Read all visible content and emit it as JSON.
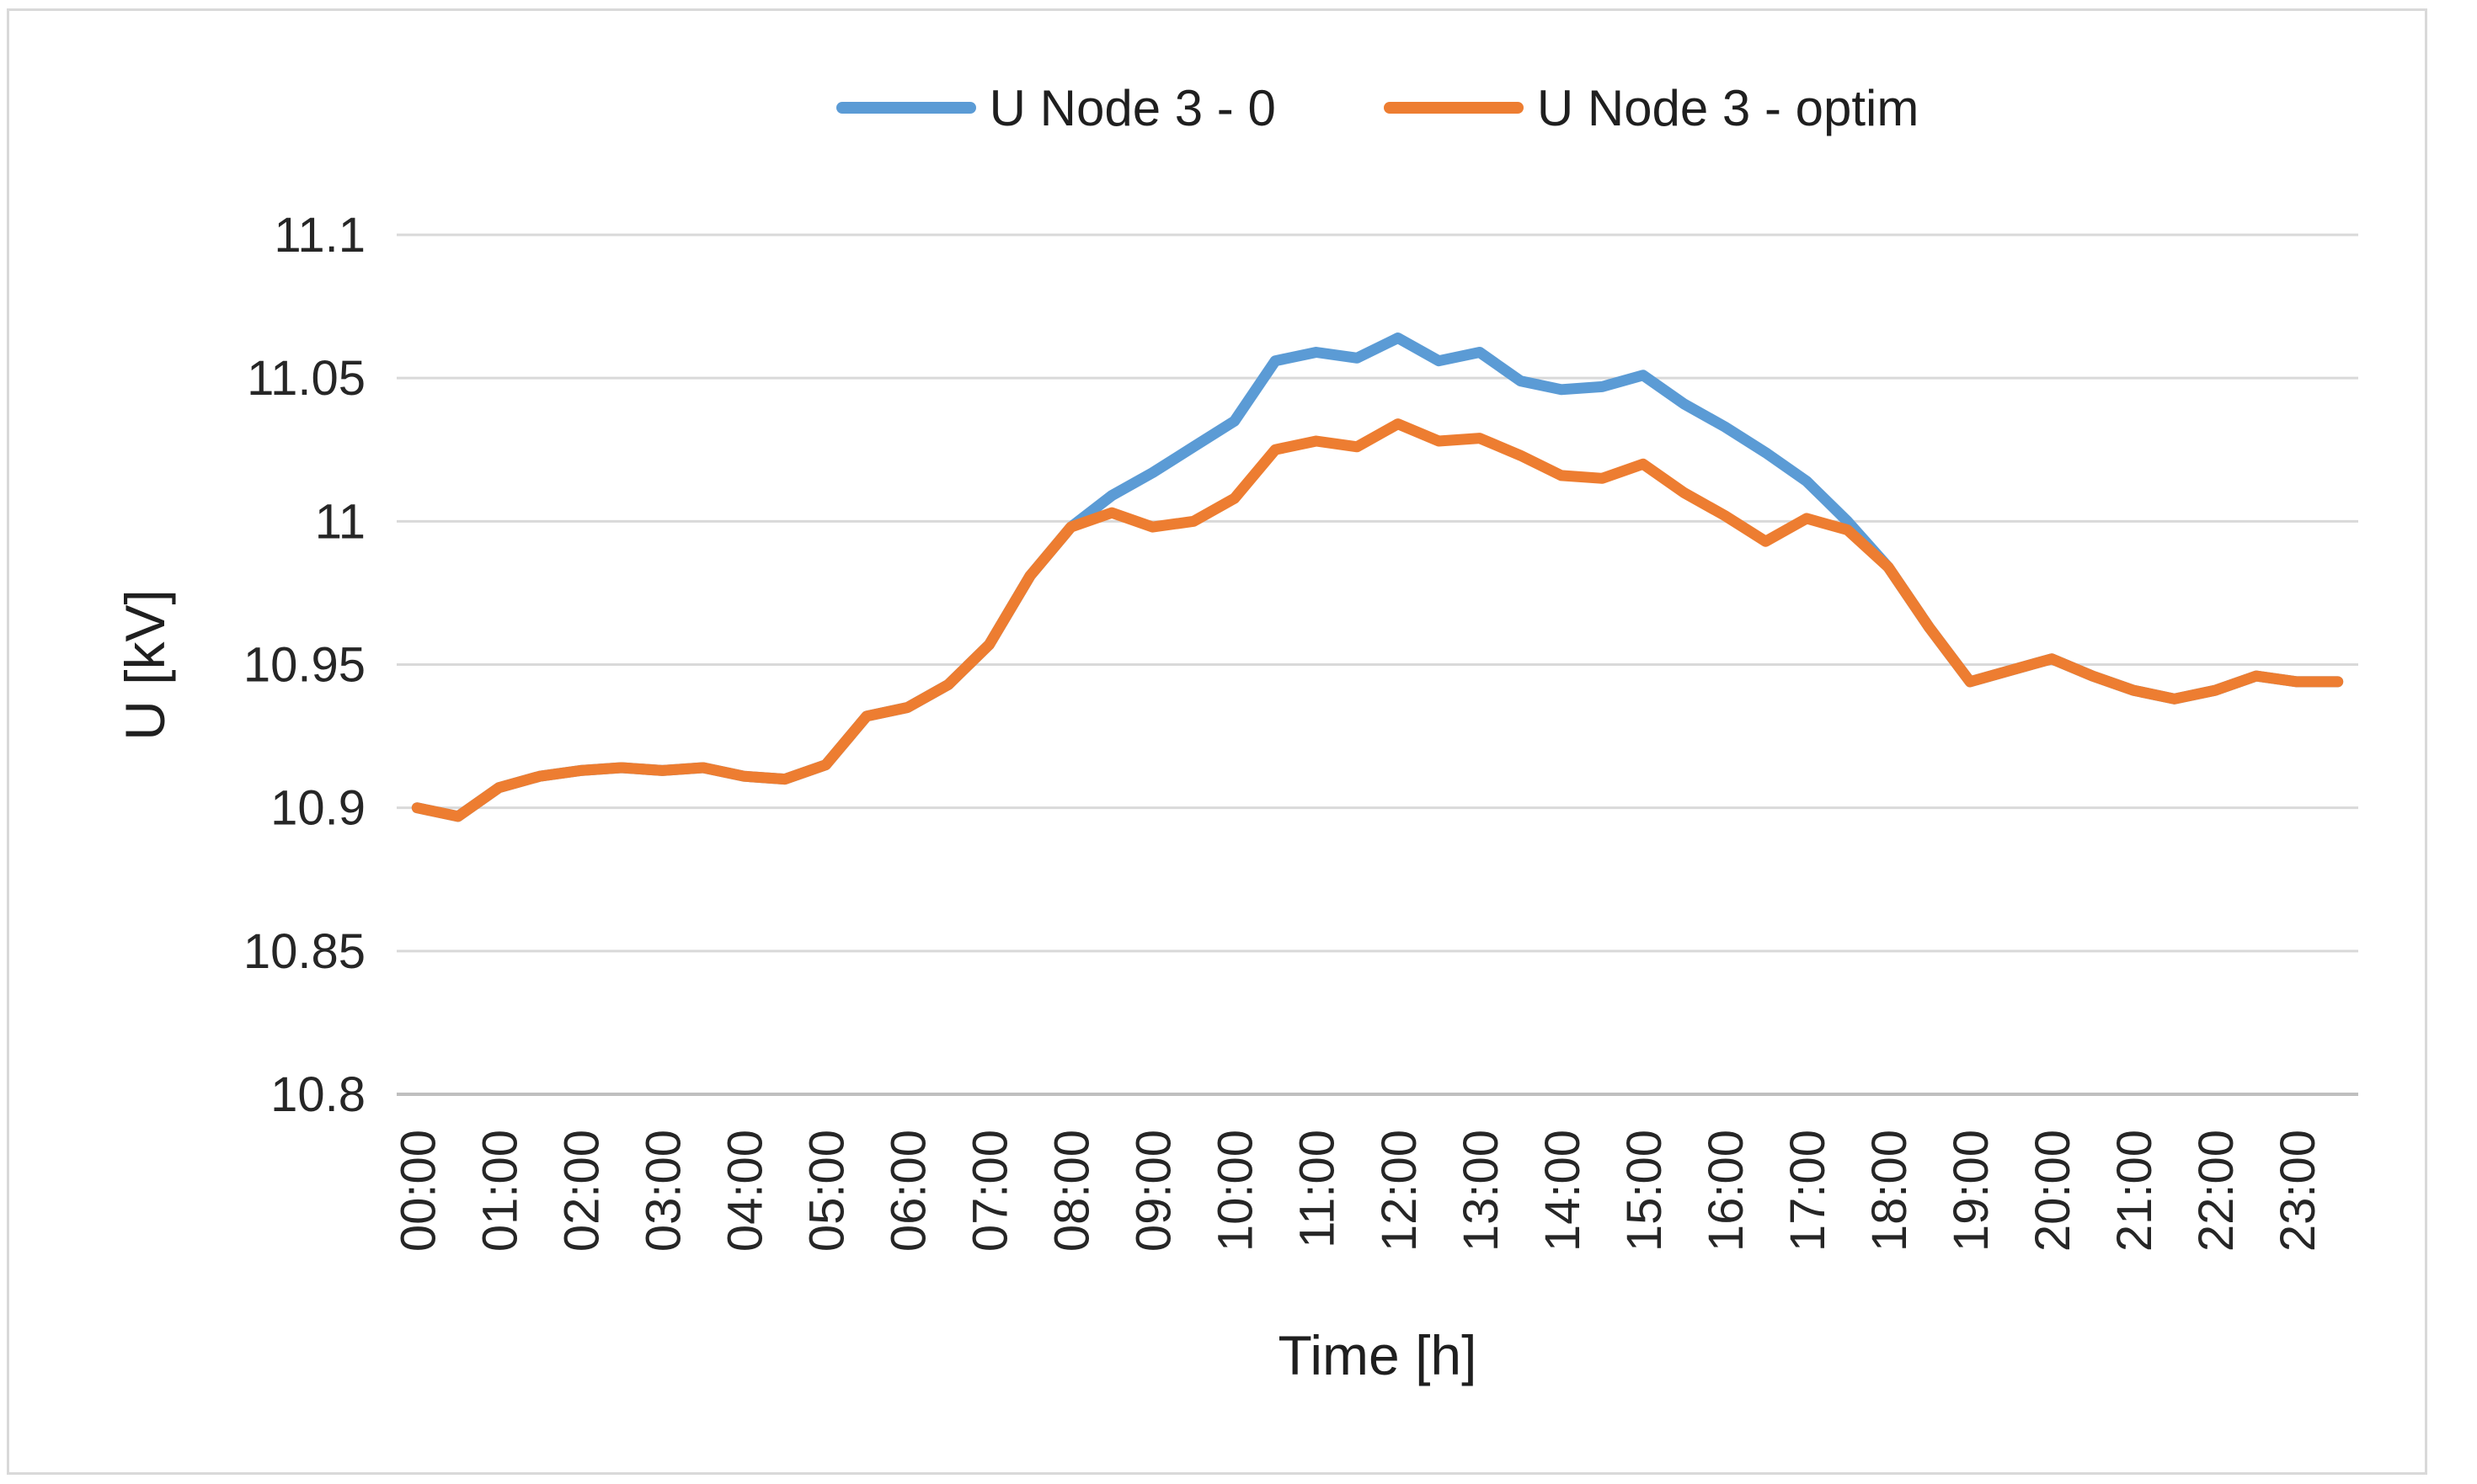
{
  "chart_data": {
    "type": "line",
    "title": "",
    "xlabel": "Time [h]",
    "ylabel": "U [kV]",
    "legend_position": "top-center",
    "grid": true,
    "ylim": [
      10.8,
      11.1
    ],
    "y_ticks": [
      {
        "label": "11.1",
        "value": 11.1
      },
      {
        "label": "11.05",
        "value": 11.05
      },
      {
        "label": "11",
        "value": 11.0
      },
      {
        "label": "10.95",
        "value": 10.95
      },
      {
        "label": "10.9",
        "value": 10.9
      },
      {
        "label": "10.85",
        "value": 10.85
      },
      {
        "label": "10.8",
        "value": 10.8
      }
    ],
    "x_tick_labels": [
      "00:00",
      "01:00",
      "02:00",
      "03:00",
      "04:00",
      "05:00",
      "06:00",
      "07:00",
      "08:00",
      "09:00",
      "10:00",
      "11:00",
      "12:00",
      "13:00",
      "14:00",
      "15:00",
      "16:00",
      "17:00",
      "18:00",
      "19:00",
      "20:00",
      "21:00",
      "22:00",
      "23:00"
    ],
    "categories": [
      "00:00",
      "00:30",
      "01:00",
      "01:30",
      "02:00",
      "02:30",
      "03:00",
      "03:30",
      "04:00",
      "04:30",
      "05:00",
      "05:30",
      "06:00",
      "06:30",
      "07:00",
      "07:30",
      "08:00",
      "08:30",
      "09:00",
      "09:30",
      "10:00",
      "10:30",
      "11:00",
      "11:30",
      "12:00",
      "12:30",
      "13:00",
      "13:30",
      "14:00",
      "14:30",
      "15:00",
      "15:30",
      "16:00",
      "16:30",
      "17:00",
      "17:30",
      "18:00",
      "18:30",
      "19:00",
      "19:30",
      "20:00",
      "20:30",
      "21:00",
      "21:30",
      "22:00",
      "22:30",
      "23:00",
      "23:30"
    ],
    "series": [
      {
        "name": "U Node 3 - 0",
        "color": "#5B9BD5",
        "values": [
          10.9,
          10.897,
          10.907,
          10.911,
          10.913,
          10.914,
          10.913,
          10.914,
          10.911,
          10.91,
          10.915,
          10.932,
          10.935,
          10.943,
          10.957,
          10.981,
          10.998,
          11.009,
          11.017,
          11.026,
          11.035,
          11.056,
          11.059,
          11.057,
          11.064,
          11.056,
          11.059,
          11.049,
          11.046,
          11.047,
          11.051,
          11.041,
          11.033,
          11.024,
          11.014,
          11.0,
          10.984,
          10.963,
          10.944,
          10.948,
          10.952,
          10.946,
          10.941,
          10.938,
          10.941,
          10.946,
          10.944,
          10.944
        ]
      },
      {
        "name": "U Node 3 - optim",
        "color": "#ED7D31",
        "values": [
          10.9,
          10.897,
          10.907,
          10.911,
          10.913,
          10.914,
          10.913,
          10.914,
          10.911,
          10.91,
          10.915,
          10.932,
          10.935,
          10.943,
          10.957,
          10.981,
          10.998,
          11.003,
          10.998,
          11.0,
          11.008,
          11.025,
          11.028,
          11.026,
          11.034,
          11.028,
          11.029,
          11.023,
          11.016,
          11.015,
          11.02,
          11.01,
          11.002,
          10.993,
          11.001,
          10.997,
          10.984,
          10.963,
          10.944,
          10.948,
          10.952,
          10.946,
          10.941,
          10.938,
          10.941,
          10.946,
          10.944,
          10.944
        ]
      }
    ],
    "colors": {
      "gridline": "#D9D9D9",
      "axis_line": "#BFBFBF",
      "frame_border": "#D9D9D9",
      "label_text": "#262626"
    }
  }
}
